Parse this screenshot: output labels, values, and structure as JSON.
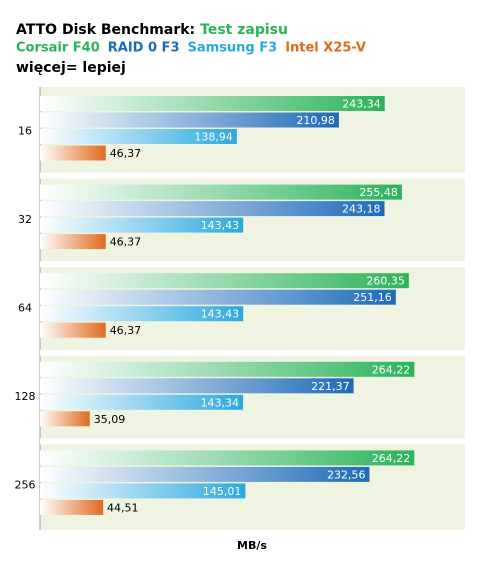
{
  "chart_data": {
    "type": "hbar",
    "title": "ATTO Disk Benchmark:",
    "title_highlight": "Test zapisu",
    "subtitle": "więcej= lepiej",
    "x_label": "MB/s",
    "categories": [
      "16",
      "32",
      "64",
      "128",
      "256"
    ],
    "xlim": [
      0,
      300
    ],
    "series": [
      {
        "name": "Corsair F40",
        "color": "#2bb35a",
        "values": [
          243.34,
          255.48,
          260.35,
          264.22,
          264.22
        ],
        "value_labels": [
          "243,34",
          "255,48",
          "260,35",
          "264,22",
          "264,22"
        ]
      },
      {
        "name": "RAID 0 F3",
        "color": "#1e6ab8",
        "values": [
          210.98,
          243.18,
          251.16,
          221.37,
          232.56
        ],
        "value_labels": [
          "210,98",
          "243,18",
          "251,16",
          "221,37",
          "232,56"
        ]
      },
      {
        "name": "Samsung F3",
        "color": "#2aa8e0",
        "values": [
          138.94,
          143.43,
          143.43,
          143.34,
          145.01
        ],
        "value_labels": [
          "138,94",
          "143,43",
          "143,43",
          "143,34",
          "145,01"
        ]
      },
      {
        "name": "Intel X25-V",
        "color": "#e06a1e",
        "values": [
          46.37,
          46.37,
          46.37,
          35.09,
          44.51
        ],
        "value_labels": [
          "46,37",
          "46,37",
          "46,37",
          "35,09",
          "44,51"
        ]
      }
    ]
  }
}
